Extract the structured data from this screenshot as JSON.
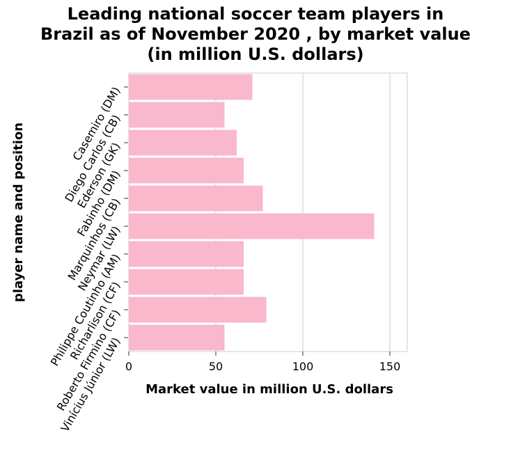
{
  "chart_data": {
    "type": "bar",
    "orientation": "horizontal",
    "title_lines": [
      "Leading national soccer team players in",
      "Brazil as of November 2020 , by market value",
      "(in million U.S. dollars)"
    ],
    "xlabel": "Market value in million U.S. dollars",
    "ylabel": "player name and position",
    "xlim": [
      0,
      160
    ],
    "xticks": [
      0,
      50,
      100,
      150
    ],
    "grid": true,
    "bar_color": "#f9b8cc",
    "categories": [
      "Casemiro (DM)",
      "Diego Carlos (CB)",
      "Ederson (GK)",
      "Fabinho (DM)",
      "Marquinhos (CB)",
      "Neymar (LW)",
      "Philippe Coutinho (AM)",
      "Richarlison (CF)",
      "Roberto Firmino (CF)",
      "Vinícius Júnior (LW)"
    ],
    "values": [
      71,
      55,
      62,
      66,
      77,
      141,
      66,
      66,
      79,
      55
    ]
  }
}
